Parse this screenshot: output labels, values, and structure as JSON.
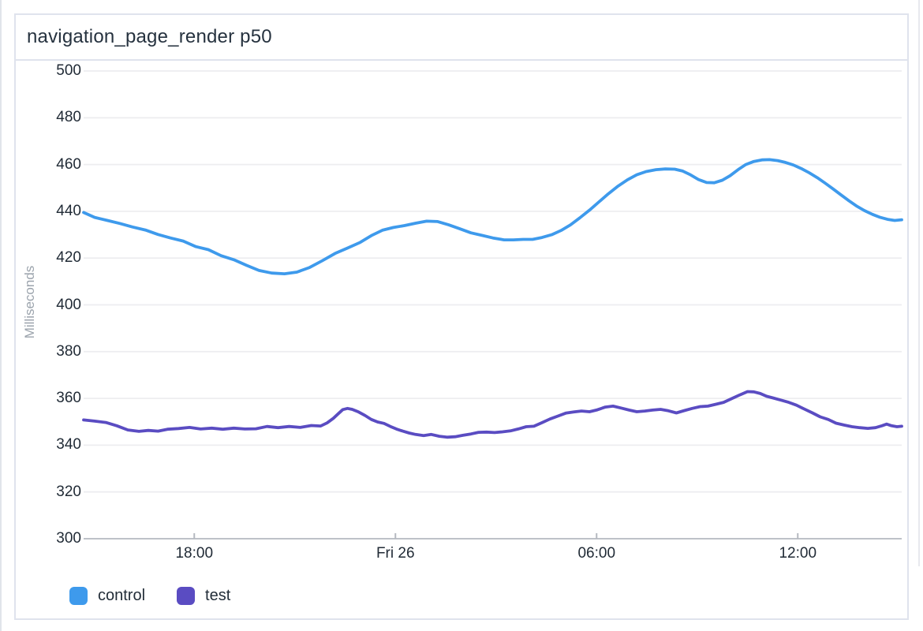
{
  "panel": {
    "title": "navigation_page_render p50"
  },
  "colors": {
    "control_blue": "#3e9aec",
    "test_purple": "#5a4cc2",
    "gridline": "#ededf0",
    "axis_line": "#b5b9c0",
    "tick_text": "#212b36",
    "panel_border": "#dfe3ed"
  },
  "chart_data": {
    "type": "line",
    "title": "navigation_page_render p50",
    "xlabel": "",
    "ylabel": "Milliseconds",
    "grid": true,
    "legend_position": "bottom-left",
    "y_axis": {
      "min": 300,
      "max": 500,
      "step": 20,
      "ticks": [
        500,
        480,
        460,
        440,
        420,
        400,
        380,
        360,
        340,
        320,
        300
      ]
    },
    "x_axis": {
      "unit": "hours (time of day, Thu 25 → Fri 26)",
      "domain_min": 14.7,
      "domain_max": 39.1,
      "ticks": [
        {
          "pos": 18,
          "label": "18:00"
        },
        {
          "pos": 24,
          "label": "Fri 26"
        },
        {
          "pos": 30,
          "label": "06:00"
        },
        {
          "pos": 36,
          "label": "12:00"
        }
      ]
    },
    "series": [
      {
        "name": "control",
        "color": "#3e9aec",
        "points": [
          [
            14.7,
            439.5
          ],
          [
            15.03,
            437.4
          ],
          [
            15.41,
            436.1
          ],
          [
            15.78,
            434.8
          ],
          [
            16.16,
            433.3
          ],
          [
            16.54,
            432.0
          ],
          [
            16.92,
            430.1
          ],
          [
            17.29,
            428.6
          ],
          [
            17.67,
            427.3
          ],
          [
            18.05,
            424.9
          ],
          [
            18.42,
            423.6
          ],
          [
            18.8,
            421.0
          ],
          [
            19.18,
            419.3
          ],
          [
            19.56,
            416.9
          ],
          [
            19.93,
            414.7
          ],
          [
            20.31,
            413.6
          ],
          [
            20.69,
            413.3
          ],
          [
            21.06,
            414.0
          ],
          [
            21.44,
            416.0
          ],
          [
            21.82,
            418.9
          ],
          [
            22.2,
            422.0
          ],
          [
            22.57,
            424.3
          ],
          [
            22.95,
            426.7
          ],
          [
            23.28,
            429.6
          ],
          [
            23.61,
            431.9
          ],
          [
            23.94,
            433.1
          ],
          [
            24.27,
            433.9
          ],
          [
            24.6,
            434.9
          ],
          [
            24.93,
            435.8
          ],
          [
            25.26,
            435.6
          ],
          [
            25.59,
            434.2
          ],
          [
            25.92,
            432.5
          ],
          [
            26.25,
            430.8
          ],
          [
            26.58,
            429.7
          ],
          [
            26.91,
            428.6
          ],
          [
            27.24,
            427.8
          ],
          [
            27.52,
            427.8
          ],
          [
            27.81,
            428.0
          ],
          [
            28.09,
            428.0
          ],
          [
            28.37,
            428.8
          ],
          [
            28.66,
            430.0
          ],
          [
            28.94,
            431.8
          ],
          [
            29.22,
            434.2
          ],
          [
            29.5,
            437.2
          ],
          [
            29.79,
            440.5
          ],
          [
            30.07,
            444.0
          ],
          [
            30.35,
            447.5
          ],
          [
            30.64,
            450.8
          ],
          [
            30.92,
            453.5
          ],
          [
            31.2,
            455.6
          ],
          [
            31.48,
            457.0
          ],
          [
            31.77,
            457.8
          ],
          [
            32.05,
            458.1
          ],
          [
            32.33,
            458.0
          ],
          [
            32.57,
            457.2
          ],
          [
            32.8,
            455.6
          ],
          [
            33.04,
            453.6
          ],
          [
            33.28,
            452.3
          ],
          [
            33.51,
            452.2
          ],
          [
            33.75,
            453.3
          ],
          [
            33.98,
            455.2
          ],
          [
            34.22,
            457.8
          ],
          [
            34.45,
            460.0
          ],
          [
            34.69,
            461.3
          ],
          [
            34.93,
            462.0
          ],
          [
            35.16,
            462.1
          ],
          [
            35.4,
            461.7
          ],
          [
            35.63,
            460.9
          ],
          [
            35.87,
            459.8
          ],
          [
            36.1,
            458.3
          ],
          [
            36.34,
            456.5
          ],
          [
            36.58,
            454.4
          ],
          [
            36.81,
            452.1
          ],
          [
            37.05,
            449.6
          ],
          [
            37.28,
            447.1
          ],
          [
            37.52,
            444.6
          ],
          [
            37.75,
            442.3
          ],
          [
            37.99,
            440.3
          ],
          [
            38.23,
            438.7
          ],
          [
            38.46,
            437.4
          ],
          [
            38.7,
            436.5
          ],
          [
            38.89,
            436.1
          ],
          [
            39.1,
            436.4
          ]
        ]
      },
      {
        "name": "test",
        "color": "#5a4cc2",
        "points": [
          [
            14.7,
            350.8
          ],
          [
            15.03,
            350.3
          ],
          [
            15.36,
            349.7
          ],
          [
            15.69,
            348.3
          ],
          [
            16.02,
            346.5
          ],
          [
            16.35,
            345.9
          ],
          [
            16.63,
            346.3
          ],
          [
            16.92,
            346.0
          ],
          [
            17.2,
            346.8
          ],
          [
            17.53,
            347.1
          ],
          [
            17.86,
            347.6
          ],
          [
            18.19,
            346.9
          ],
          [
            18.52,
            347.3
          ],
          [
            18.85,
            346.8
          ],
          [
            19.18,
            347.3
          ],
          [
            19.51,
            346.9
          ],
          [
            19.84,
            347.0
          ],
          [
            20.17,
            348.0
          ],
          [
            20.5,
            347.5
          ],
          [
            20.83,
            348.0
          ],
          [
            21.16,
            347.6
          ],
          [
            21.49,
            348.4
          ],
          [
            21.77,
            348.2
          ],
          [
            21.96,
            349.5
          ],
          [
            22.15,
            351.5
          ],
          [
            22.29,
            353.4
          ],
          [
            22.43,
            355.2
          ],
          [
            22.57,
            355.7
          ],
          [
            22.71,
            355.3
          ],
          [
            22.9,
            354.2
          ],
          [
            23.09,
            352.7
          ],
          [
            23.28,
            351.0
          ],
          [
            23.47,
            349.9
          ],
          [
            23.66,
            349.3
          ],
          [
            23.85,
            348.0
          ],
          [
            24.03,
            346.9
          ],
          [
            24.22,
            346.0
          ],
          [
            24.41,
            345.2
          ],
          [
            24.6,
            344.6
          ],
          [
            24.84,
            344.1
          ],
          [
            25.07,
            344.6
          ],
          [
            25.31,
            343.8
          ],
          [
            25.54,
            343.4
          ],
          [
            25.78,
            343.6
          ],
          [
            26.01,
            344.2
          ],
          [
            26.25,
            344.8
          ],
          [
            26.48,
            345.5
          ],
          [
            26.72,
            345.6
          ],
          [
            26.96,
            345.4
          ],
          [
            27.19,
            345.7
          ],
          [
            27.43,
            346.1
          ],
          [
            27.66,
            346.9
          ],
          [
            27.9,
            347.9
          ],
          [
            28.13,
            348.1
          ],
          [
            28.37,
            349.6
          ],
          [
            28.61,
            351.2
          ],
          [
            28.84,
            352.4
          ],
          [
            29.08,
            353.7
          ],
          [
            29.32,
            354.2
          ],
          [
            29.55,
            354.6
          ],
          [
            29.79,
            354.3
          ],
          [
            30.02,
            355.1
          ],
          [
            30.26,
            356.3
          ],
          [
            30.49,
            356.7
          ],
          [
            30.73,
            355.9
          ],
          [
            30.97,
            355.0
          ],
          [
            31.2,
            354.3
          ],
          [
            31.44,
            354.6
          ],
          [
            31.67,
            355.0
          ],
          [
            31.91,
            355.3
          ],
          [
            32.14,
            354.7
          ],
          [
            32.38,
            353.8
          ],
          [
            32.62,
            354.8
          ],
          [
            32.85,
            355.7
          ],
          [
            33.09,
            356.5
          ],
          [
            33.32,
            356.7
          ],
          [
            33.56,
            357.5
          ],
          [
            33.79,
            358.3
          ],
          [
            34.03,
            359.9
          ],
          [
            34.27,
            361.5
          ],
          [
            34.5,
            362.9
          ],
          [
            34.69,
            362.8
          ],
          [
            34.88,
            362.1
          ],
          [
            35.07,
            360.9
          ],
          [
            35.26,
            360.2
          ],
          [
            35.49,
            359.3
          ],
          [
            35.73,
            358.3
          ],
          [
            35.96,
            357.1
          ],
          [
            36.2,
            355.4
          ],
          [
            36.44,
            353.8
          ],
          [
            36.67,
            352.1
          ],
          [
            36.91,
            351.0
          ],
          [
            37.14,
            349.4
          ],
          [
            37.38,
            348.6
          ],
          [
            37.62,
            347.9
          ],
          [
            37.85,
            347.5
          ],
          [
            38.09,
            347.2
          ],
          [
            38.32,
            347.5
          ],
          [
            38.51,
            348.3
          ],
          [
            38.65,
            349.0
          ],
          [
            38.8,
            348.3
          ],
          [
            38.96,
            347.9
          ],
          [
            39.1,
            348.1
          ]
        ]
      }
    ]
  }
}
